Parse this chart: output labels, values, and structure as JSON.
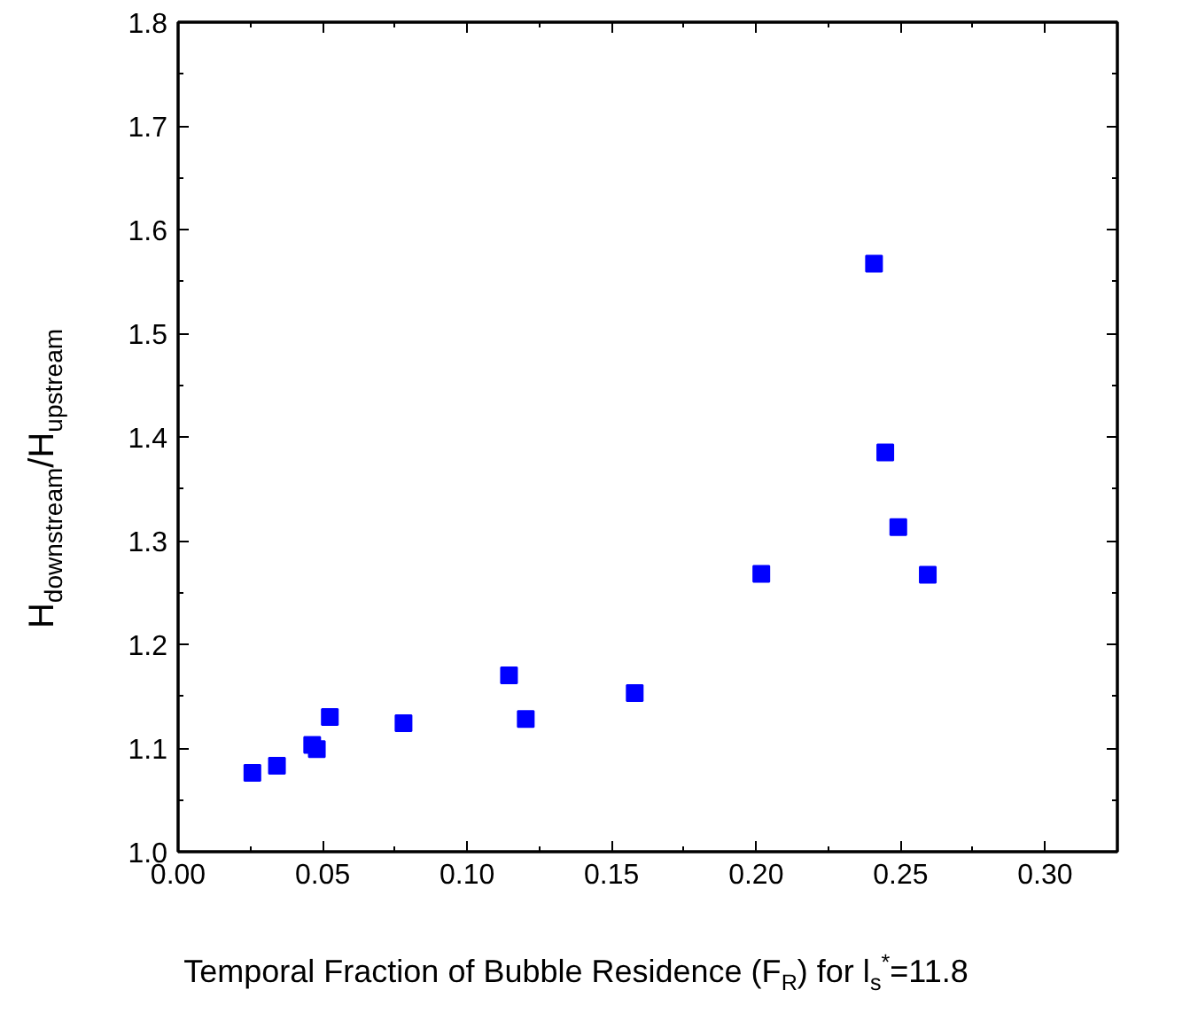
{
  "chart_data": {
    "type": "scatter",
    "xlabel": "Temporal Fraction of Bubble Residence (F$_{R}$) for l$_{s}$$^{*}$=11.8",
    "ylabel": "H$_{downstream}$/H$_{upstream}$",
    "x": [
      0.0257,
      0.0342,
      0.0464,
      0.048,
      0.0525,
      0.078,
      0.1145,
      0.1203,
      0.158,
      0.2018,
      0.2408,
      0.2447,
      0.2492,
      0.2594
    ],
    "series": [
      {
        "color": "#0000ff",
        "values": [
          1.076,
          1.083,
          1.103,
          1.099,
          1.13,
          1.124,
          1.17,
          1.128,
          1.153,
          1.268,
          1.567,
          1.385,
          1.313,
          1.267
        ]
      }
    ],
    "xlim": [
      0,
      0.325
    ],
    "ylim": [
      1.0,
      1.8
    ],
    "xticks": [
      {
        "value": 0,
        "label": "0.00"
      },
      {
        "value": 0.05,
        "label": "0.05"
      },
      {
        "value": 0.1,
        "label": "0.10"
      },
      {
        "value": 0.15,
        "label": "0.15"
      },
      {
        "value": 0.2,
        "label": "0.20"
      },
      {
        "value": 0.25,
        "label": "0.25"
      },
      {
        "value": 0.3,
        "label": "0.30"
      }
    ],
    "yticks": [
      {
        "value": 1.0,
        "label": "1.0"
      },
      {
        "value": 1.1,
        "label": "1.1"
      },
      {
        "value": 1.2,
        "label": "1.2"
      },
      {
        "value": 1.3,
        "label": "1.3"
      },
      {
        "value": 1.4,
        "label": "1.4"
      },
      {
        "value": 1.5,
        "label": "1.5"
      },
      {
        "value": 1.6,
        "label": "1.6"
      },
      {
        "value": 1.7,
        "label": "1.7"
      },
      {
        "value": 1.8,
        "label": "1.8"
      }
    ],
    "marker": "square",
    "grid": false
  }
}
